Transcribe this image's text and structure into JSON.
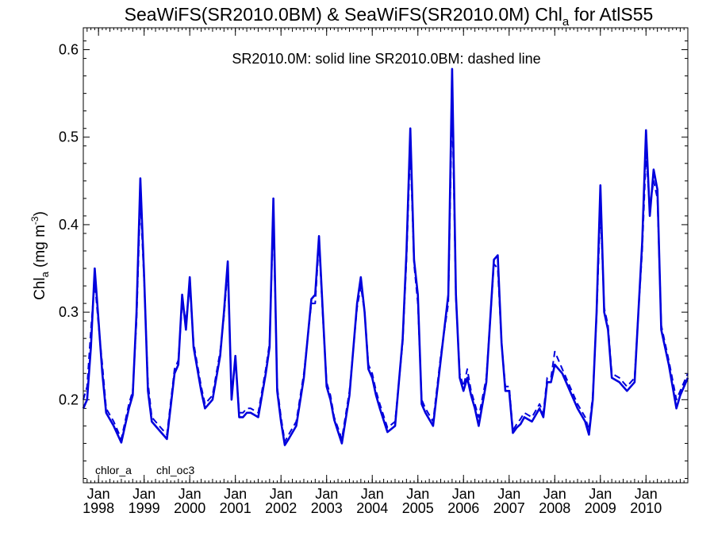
{
  "chart_data": {
    "type": "line",
    "title": {
      "main": "SeaWiFS(SR2010.0BM) & SeaWiFS(SR2010.0M)  Chl",
      "sub": "a",
      "tail": " for AtlS55"
    },
    "ylabel": {
      "main": "Chl",
      "sub": "a",
      "units_open": " (mg m",
      "units_sup": "-3",
      "units_close": ")"
    },
    "annotation": "SR2010.0M: solid line   SR2010.0BM: dashed line",
    "ylim": [
      0.105,
      0.625
    ],
    "xlim": [
      "1997-09-01",
      "2010-12-01"
    ],
    "y_ticks": [
      {
        "value": 0.2,
        "label": "0.2"
      },
      {
        "value": 0.3,
        "label": "0.3"
      },
      {
        "value": 0.4,
        "label": "0.4"
      },
      {
        "value": 0.5,
        "label": "0.5"
      },
      {
        "value": 0.6,
        "label": "0.6"
      }
    ],
    "x_ticks": [
      {
        "date": "1998-01",
        "month": "Jan",
        "year": "1998"
      },
      {
        "date": "1999-01",
        "month": "Jan",
        "year": "1999"
      },
      {
        "date": "2000-01",
        "month": "Jan",
        "year": "2000"
      },
      {
        "date": "2001-01",
        "month": "Jan",
        "year": "2001"
      },
      {
        "date": "2002-01",
        "month": "Jan",
        "year": "2002"
      },
      {
        "date": "2003-01",
        "month": "Jan",
        "year": "2003"
      },
      {
        "date": "2004-01",
        "month": "Jan",
        "year": "2004"
      },
      {
        "date": "2005-01",
        "month": "Jan",
        "year": "2005"
      },
      {
        "date": "2006-01",
        "month": "Jan",
        "year": "2006"
      },
      {
        "date": "2007-01",
        "month": "Jan",
        "year": "2007"
      },
      {
        "date": "2008-01",
        "month": "Jan",
        "year": "2008"
      },
      {
        "date": "2009-01",
        "month": "Jan",
        "year": "2009"
      },
      {
        "date": "2010-01",
        "month": "Jan",
        "year": "2010"
      }
    ],
    "legend": [
      {
        "label": "chlor_a",
        "color": "#000000"
      },
      {
        "label": "chl_oc3",
        "color": "#0000cc"
      }
    ],
    "series": [
      {
        "name": "SR2010.0M",
        "style": "solid",
        "color": "#0000dd",
        "x": [
          "1997-09",
          "1997-10",
          "1997-11",
          "1997-12",
          "1998-01",
          "1998-02",
          "1998-03",
          "1998-05",
          "1998-07",
          "1998-09",
          "1998-10",
          "1998-11",
          "1998-12",
          "1999-01",
          "1999-02",
          "1999-03",
          "1999-05",
          "1999-07",
          "1999-09",
          "1999-10",
          "1999-11",
          "1999-12",
          "2000-01",
          "2000-02",
          "2000-03",
          "2000-04",
          "2000-05",
          "2000-07",
          "2000-09",
          "2000-10",
          "2000-11",
          "2000-12",
          "2001-01",
          "2001-02",
          "2001-03",
          "2001-04",
          "2001-05",
          "2001-07",
          "2001-09",
          "2001-10",
          "2001-11",
          "2001-12",
          "2002-01",
          "2002-02",
          "2002-03",
          "2002-05",
          "2002-07",
          "2002-09",
          "2002-10",
          "2002-11",
          "2002-12",
          "2003-01",
          "2003-02",
          "2003-03",
          "2003-05",
          "2003-07",
          "2003-09",
          "2003-10",
          "2003-11",
          "2003-12",
          "2004-01",
          "2004-02",
          "2004-03",
          "2004-05",
          "2004-07",
          "2004-09",
          "2004-10",
          "2004-11",
          "2004-12",
          "2005-01",
          "2005-02",
          "2005-03",
          "2005-05",
          "2005-07",
          "2005-09",
          "2005-10",
          "2005-11",
          "2005-12",
          "2006-01",
          "2006-02",
          "2006-03",
          "2006-04",
          "2006-05",
          "2006-07",
          "2006-09",
          "2006-10",
          "2006-11",
          "2006-12",
          "2007-01",
          "2007-02",
          "2007-03",
          "2007-04",
          "2007-05",
          "2007-07",
          "2007-09",
          "2007-10",
          "2007-11",
          "2007-12",
          "2008-01",
          "2008-03",
          "2008-05",
          "2008-07",
          "2008-09",
          "2008-10",
          "2008-11",
          "2008-12",
          "2009-01",
          "2009-02",
          "2009-03",
          "2009-04",
          "2009-06",
          "2009-08",
          "2009-10",
          "2009-11",
          "2009-12",
          "2010-01",
          "2010-02",
          "2010-03",
          "2010-04",
          "2010-05",
          "2010-07",
          "2010-09",
          "2010-10",
          "2010-11",
          "2010-12"
        ],
        "y": [
          0.19,
          0.2,
          0.26,
          0.35,
          0.29,
          0.23,
          0.185,
          0.17,
          0.151,
          0.19,
          0.205,
          0.3,
          0.453,
          0.34,
          0.21,
          0.175,
          0.165,
          0.155,
          0.23,
          0.24,
          0.32,
          0.28,
          0.34,
          0.26,
          0.235,
          0.21,
          0.19,
          0.2,
          0.25,
          0.3,
          0.358,
          0.2,
          0.25,
          0.18,
          0.18,
          0.185,
          0.185,
          0.18,
          0.23,
          0.26,
          0.43,
          0.21,
          0.175,
          0.148,
          0.155,
          0.17,
          0.225,
          0.315,
          0.32,
          0.387,
          0.3,
          0.215,
          0.2,
          0.177,
          0.15,
          0.205,
          0.31,
          0.34,
          0.3,
          0.235,
          0.225,
          0.205,
          0.19,
          0.163,
          0.17,
          0.27,
          0.37,
          0.51,
          0.36,
          0.32,
          0.195,
          0.185,
          0.17,
          0.245,
          0.32,
          0.578,
          0.32,
          0.225,
          0.21,
          0.225,
          0.205,
          0.19,
          0.17,
          0.22,
          0.36,
          0.365,
          0.265,
          0.21,
          0.21,
          0.162,
          0.168,
          0.172,
          0.18,
          0.175,
          0.19,
          0.18,
          0.22,
          0.22,
          0.24,
          0.23,
          0.21,
          0.19,
          0.175,
          0.16,
          0.2,
          0.3,
          0.445,
          0.3,
          0.28,
          0.225,
          0.22,
          0.21,
          0.22,
          0.3,
          0.38,
          0.508,
          0.41,
          0.463,
          0.44,
          0.28,
          0.24,
          0.19,
          0.205,
          0.215,
          0.225
        ]
      },
      {
        "name": "SR2010.0BM",
        "style": "dashed",
        "color": "#0000dd",
        "x": [
          "1997-09",
          "1997-10",
          "1997-11",
          "1997-12",
          "1998-01",
          "1998-02",
          "1998-03",
          "1998-05",
          "1998-07",
          "1998-09",
          "1998-10",
          "1998-11",
          "1998-12",
          "1999-01",
          "1999-02",
          "1999-03",
          "1999-05",
          "1999-07",
          "1999-09",
          "1999-10",
          "1999-11",
          "1999-12",
          "2000-01",
          "2000-02",
          "2000-03",
          "2000-04",
          "2000-05",
          "2000-07",
          "2000-09",
          "2000-10",
          "2000-11",
          "2000-12",
          "2001-01",
          "2001-02",
          "2001-03",
          "2001-04",
          "2001-05",
          "2001-07",
          "2001-09",
          "2001-10",
          "2001-11",
          "2001-12",
          "2002-01",
          "2002-02",
          "2002-03",
          "2002-05",
          "2002-07",
          "2002-09",
          "2002-10",
          "2002-11",
          "2002-12",
          "2003-01",
          "2003-02",
          "2003-03",
          "2003-05",
          "2003-07",
          "2003-09",
          "2003-10",
          "2003-11",
          "2003-12",
          "2004-01",
          "2004-02",
          "2004-03",
          "2004-05",
          "2004-07",
          "2004-09",
          "2004-10",
          "2004-11",
          "2004-12",
          "2005-01",
          "2005-02",
          "2005-03",
          "2005-05",
          "2005-07",
          "2005-09",
          "2005-10",
          "2005-11",
          "2005-12",
          "2006-01",
          "2006-02",
          "2006-03",
          "2006-04",
          "2006-05",
          "2006-07",
          "2006-09",
          "2006-10",
          "2006-11",
          "2006-12",
          "2007-01",
          "2007-02",
          "2007-03",
          "2007-04",
          "2007-05",
          "2007-07",
          "2007-09",
          "2007-10",
          "2007-11",
          "2007-12",
          "2008-01",
          "2008-03",
          "2008-05",
          "2008-07",
          "2008-09",
          "2008-10",
          "2008-11",
          "2008-12",
          "2009-01",
          "2009-02",
          "2009-03",
          "2009-04",
          "2009-06",
          "2009-08",
          "2009-10",
          "2009-11",
          "2009-12",
          "2010-01",
          "2010-02",
          "2010-03",
          "2010-04",
          "2010-05",
          "2010-07",
          "2010-09",
          "2010-10",
          "2010-11",
          "2010-12"
        ],
        "y": [
          0.2,
          0.215,
          0.28,
          0.335,
          0.285,
          0.24,
          0.19,
          0.175,
          0.155,
          0.195,
          0.21,
          0.29,
          0.43,
          0.335,
          0.22,
          0.18,
          0.17,
          0.16,
          0.235,
          0.245,
          0.31,
          0.29,
          0.33,
          0.265,
          0.24,
          0.215,
          0.195,
          0.205,
          0.255,
          0.295,
          0.35,
          0.205,
          0.245,
          0.185,
          0.185,
          0.19,
          0.19,
          0.185,
          0.235,
          0.265,
          0.41,
          0.215,
          0.18,
          0.152,
          0.16,
          0.175,
          0.23,
          0.31,
          0.31,
          0.38,
          0.295,
          0.22,
          0.205,
          0.18,
          0.155,
          0.21,
          0.305,
          0.33,
          0.3,
          0.24,
          0.23,
          0.21,
          0.195,
          0.168,
          0.175,
          0.265,
          0.36,
          0.49,
          0.355,
          0.31,
          0.2,
          0.19,
          0.175,
          0.25,
          0.31,
          0.545,
          0.315,
          0.23,
          0.215,
          0.235,
          0.21,
          0.195,
          0.18,
          0.225,
          0.355,
          0.35,
          0.265,
          0.215,
          0.215,
          0.165,
          0.172,
          0.178,
          0.185,
          0.18,
          0.195,
          0.185,
          0.225,
          0.225,
          0.255,
          0.235,
          0.215,
          0.195,
          0.18,
          0.165,
          0.205,
          0.295,
          0.42,
          0.305,
          0.285,
          0.23,
          0.225,
          0.215,
          0.225,
          0.3,
          0.37,
          0.48,
          0.42,
          0.45,
          0.43,
          0.285,
          0.245,
          0.2,
          0.21,
          0.22,
          0.23
        ]
      }
    ]
  }
}
